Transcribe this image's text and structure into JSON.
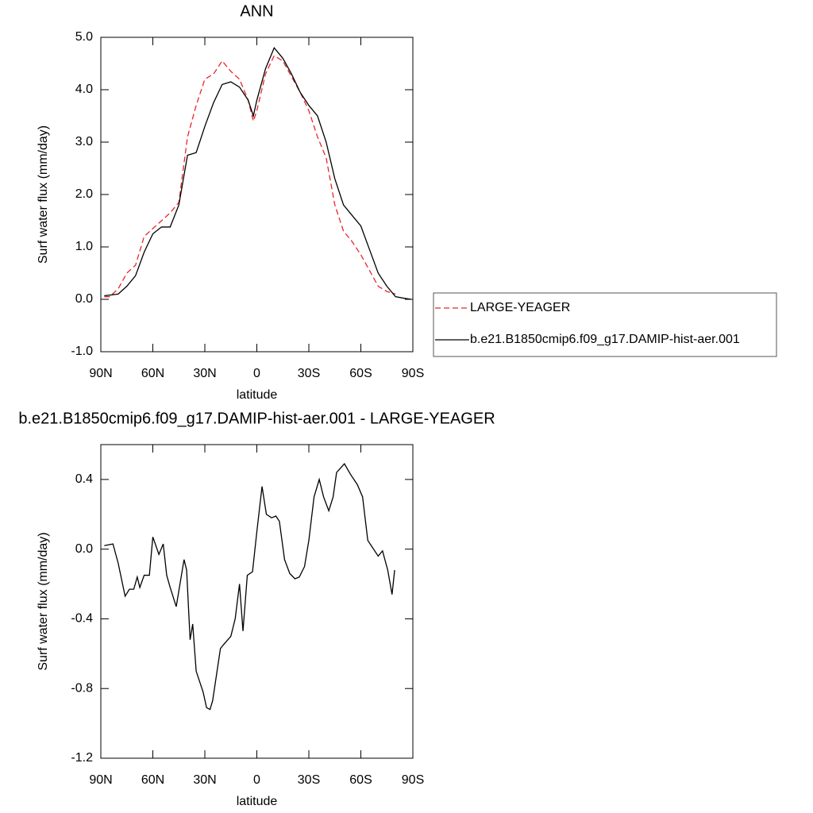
{
  "chart_data": [
    {
      "type": "line",
      "title": "ANN",
      "xlabel": "latitude",
      "ylabel": "Surf water flux (mm/day)",
      "x": [
        88,
        85,
        80,
        75,
        70,
        65,
        60,
        55,
        50,
        45,
        40,
        35,
        30,
        25,
        20,
        15,
        10,
        5,
        2,
        0,
        -5,
        -10,
        -15,
        -20,
        -25,
        -30,
        -35,
        -40,
        -45,
        -50,
        -55,
        -60,
        -65,
        -70,
        -75,
        -80,
        -85,
        -89
      ],
      "series": [
        {
          "name": "LARGE-YEAGER",
          "color": "#e8262b",
          "linestyle": "dashed",
          "values": [
            0.05,
            0.05,
            0.2,
            0.5,
            0.65,
            1.2,
            1.35,
            1.5,
            1.65,
            1.85,
            3.1,
            3.7,
            4.2,
            4.3,
            4.55,
            4.35,
            4.2,
            3.8,
            3.4,
            3.6,
            4.3,
            4.65,
            4.55,
            4.25,
            3.95,
            3.6,
            3.1,
            2.7,
            1.8,
            1.3,
            1.1,
            0.85,
            0.55,
            0.25,
            0.15,
            0.1,
            null,
            null
          ]
        },
        {
          "name": "b.e21.B1850cmip6.f09_g17.DAMIP-hist-aer.001",
          "color": "#000000",
          "linestyle": "solid",
          "values": [
            0.07,
            0.08,
            0.1,
            0.25,
            0.45,
            0.9,
            1.25,
            1.38,
            1.38,
            1.8,
            2.75,
            2.8,
            3.3,
            3.75,
            4.1,
            4.15,
            4.05,
            3.8,
            3.5,
            3.8,
            4.4,
            4.8,
            4.6,
            4.3,
            3.95,
            3.7,
            3.5,
            3.0,
            2.3,
            1.8,
            1.6,
            1.4,
            0.95,
            0.5,
            0.25,
            0.05,
            0.02,
            0.0
          ]
        }
      ],
      "xlim": [
        90,
        -90
      ],
      "ylim": [
        -1,
        5
      ],
      "xticks": [
        {
          "value": 90,
          "label": "90N"
        },
        {
          "value": 60,
          "label": "60N"
        },
        {
          "value": 30,
          "label": "30N"
        },
        0,
        {
          "value": -30,
          "label": "30S"
        },
        {
          "value": -60,
          "label": "60S"
        },
        {
          "value": -90,
          "label": "90S"
        }
      ],
      "yticks": [
        {
          "value": -1,
          "label": "-1.0"
        },
        {
          "value": 0,
          "label": "0.0"
        },
        {
          "value": 1,
          "label": "1.0"
        },
        {
          "value": 2,
          "label": "2.0"
        },
        {
          "value": 3,
          "label": "3.0"
        },
        {
          "value": 4,
          "label": "4.0"
        },
        {
          "value": 5,
          "label": "5.0"
        }
      ],
      "legend": "right"
    },
    {
      "type": "line",
      "title": "b.e21.B1850cmip6.f09_g17.DAMIP-hist-aer.001 - LARGE-YEAGER",
      "xlabel": "latitude",
      "ylabel": "Surf water flux (mm/day)",
      "x": [
        88,
        83,
        80,
        76,
        73.5,
        71,
        69,
        67.5,
        65,
        62,
        60,
        56.5,
        54,
        52,
        50,
        46.5,
        42,
        40.5,
        38.5,
        37,
        35,
        31,
        29,
        27,
        25.5,
        21,
        18.5,
        15,
        12.5,
        10,
        8,
        5.5,
        2.5,
        0,
        -3,
        -5.5,
        -8.5,
        -11,
        -13,
        -16,
        -19,
        -22,
        -24.5,
        -27.5,
        -30,
        -33,
        -36,
        -38.5,
        -41.5,
        -44,
        -46,
        -50.5,
        -54,
        -58,
        -61,
        -64,
        -66,
        -70,
        -72.5,
        -75.5,
        -78,
        -79.5
      ],
      "values": [
        0.02,
        0.03,
        -0.08,
        -0.27,
        -0.23,
        -0.23,
        -0.16,
        -0.22,
        -0.15,
        -0.15,
        0.07,
        -0.03,
        0.03,
        -0.15,
        -0.22,
        -0.33,
        -0.06,
        -0.12,
        -0.52,
        -0.43,
        -0.7,
        -0.82,
        -0.91,
        -0.92,
        -0.87,
        -0.57,
        -0.54,
        -0.5,
        -0.4,
        -0.2,
        -0.47,
        -0.15,
        -0.13,
        0.1,
        0.36,
        0.2,
        0.18,
        0.19,
        0.16,
        -0.06,
        -0.14,
        -0.17,
        -0.16,
        -0.1,
        0.05,
        0.3,
        0.4,
        0.3,
        0.22,
        0.3,
        0.44,
        0.49,
        0.43,
        0.37,
        0.3,
        0.05,
        0.02,
        -0.04,
        -0.01,
        -0.12,
        -0.26,
        -0.12
      ],
      "color": "#000000",
      "xlim": [
        90,
        -90
      ],
      "ylim": [
        -1.2,
        0.6
      ],
      "xticks": [
        {
          "value": 90,
          "label": "90N"
        },
        {
          "value": 60,
          "label": "60N"
        },
        {
          "value": 30,
          "label": "30N"
        },
        0,
        {
          "value": -30,
          "label": "30S"
        },
        {
          "value": -60,
          "label": "60S"
        },
        {
          "value": -90,
          "label": "90S"
        }
      ],
      "yticks": [
        {
          "value": -1.2,
          "label": "-1.2"
        },
        {
          "value": -0.8,
          "label": "-0.8"
        },
        {
          "value": -0.4,
          "label": "-0.4"
        },
        {
          "value": 0,
          "label": "0.0"
        },
        {
          "value": 0.4,
          "label": "0.4"
        }
      ]
    }
  ]
}
